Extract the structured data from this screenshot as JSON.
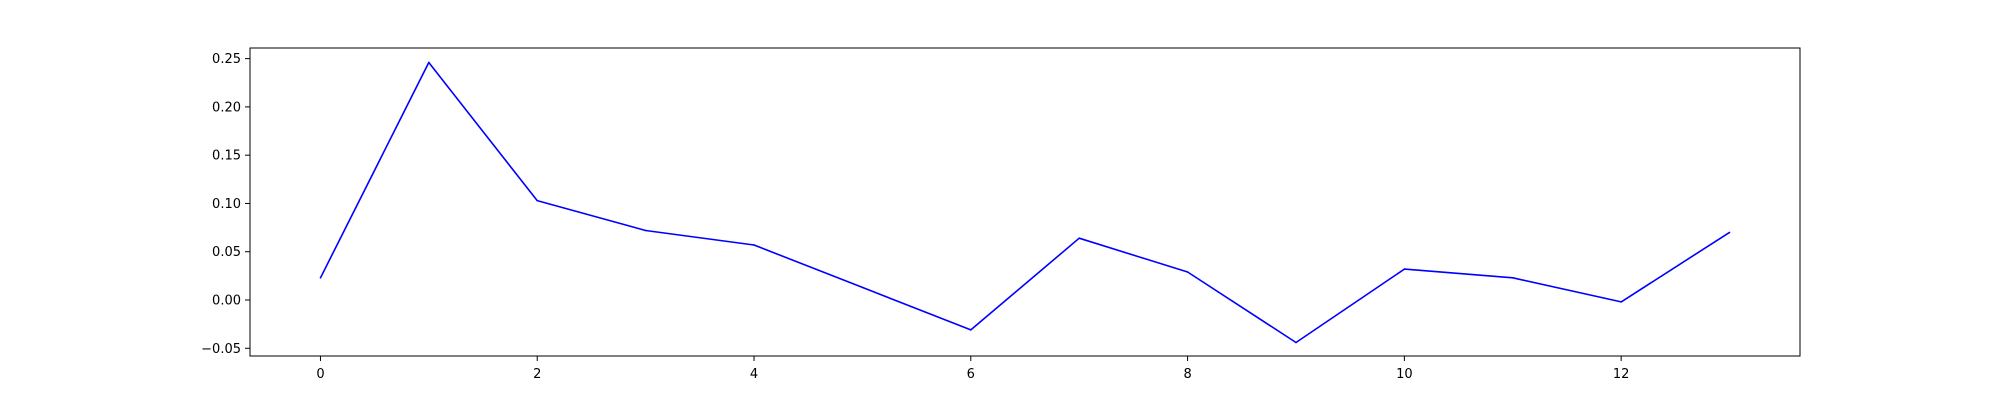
{
  "chart_data": {
    "type": "line",
    "title": "",
    "xlabel": "",
    "ylabel": "",
    "grid": false,
    "xlim": [
      -0.65,
      13.65
    ],
    "ylim": [
      -0.058,
      0.261
    ],
    "xticks": [
      0,
      2,
      4,
      6,
      8,
      10,
      12
    ],
    "xtick_labels": [
      "0",
      "2",
      "4",
      "6",
      "8",
      "10",
      "12"
    ],
    "yticks": [
      -0.05,
      0.0,
      0.05,
      0.1,
      0.15,
      0.2,
      0.25
    ],
    "ytick_labels": [
      "−0.05",
      "0.00",
      "0.05",
      "0.10",
      "0.15",
      "0.20",
      "0.25"
    ],
    "series": [
      {
        "color": "#0000ff",
        "x": [
          0,
          1,
          2,
          3,
          4,
          5,
          6,
          7,
          8,
          9,
          10,
          11,
          12,
          13
        ],
        "y": [
          0.023,
          0.246,
          0.103,
          0.072,
          0.057,
          0.013,
          -0.031,
          0.064,
          0.029,
          -0.044,
          0.032,
          0.023,
          -0.002,
          0.07
        ]
      }
    ]
  }
}
